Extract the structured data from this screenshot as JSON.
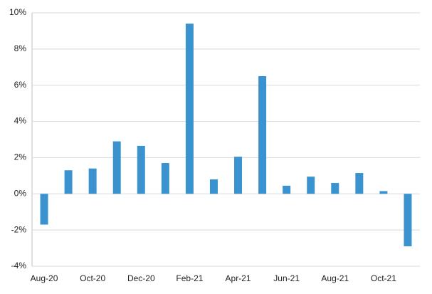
{
  "chart_data": {
    "type": "bar",
    "categories": [
      "Aug-20",
      null,
      "Oct-20",
      null,
      "Dec-20",
      null,
      "Feb-21",
      null,
      "Apr-21",
      null,
      "Jun-21",
      null,
      "Aug-21",
      null,
      "Oct-21",
      null
    ],
    "values": [
      -1.7,
      1.3,
      1.4,
      2.9,
      2.65,
      1.7,
      9.4,
      0.8,
      2.05,
      6.5,
      0.45,
      0.95,
      0.6,
      1.15,
      0.15,
      -2.9
    ],
    "color": "#3a93cf",
    "ylim": [
      -4,
      10
    ],
    "yticks": [
      {
        "value": -4,
        "label": "-4%"
      },
      {
        "value": -2,
        "label": "-2%"
      },
      {
        "value": 0,
        "label": "0%"
      },
      {
        "value": 2,
        "label": "2%"
      },
      {
        "value": 4,
        "label": "4%"
      },
      {
        "value": 6,
        "label": "6%"
      },
      {
        "value": 8,
        "label": "8%"
      },
      {
        "value": 10,
        "label": "10%"
      }
    ],
    "grid": true
  }
}
